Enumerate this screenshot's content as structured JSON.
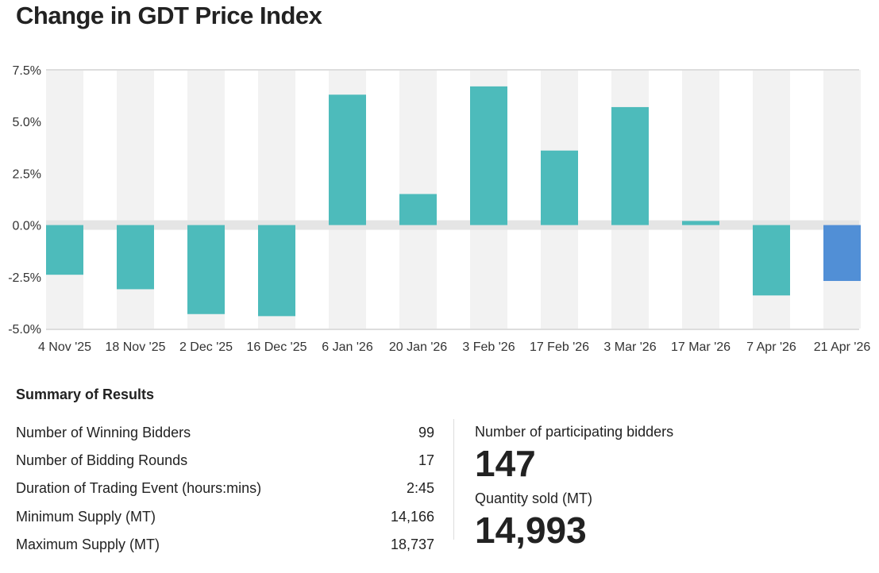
{
  "title": "Change in GDT Price Index",
  "chart_data": {
    "type": "bar",
    "categories": [
      "4 Nov '25",
      "18 Nov '25",
      "2 Dec '25",
      "16 Dec '25",
      "6 Jan '26",
      "20 Jan '26",
      "3 Feb '26",
      "17 Feb '26",
      "3 Mar '26",
      "17 Mar '26",
      "7 Apr '26",
      "21 Apr '26"
    ],
    "values": [
      -2.4,
      -3.1,
      -4.3,
      -4.4,
      6.3,
      1.5,
      6.7,
      3.6,
      5.7,
      0.2,
      -3.4,
      -2.7
    ],
    "ylim": [
      -5,
      7.5
    ],
    "yticks": [
      "7.5%",
      "5.0%",
      "2.5%",
      "0.0%",
      "-2.5%",
      "-5.0%"
    ],
    "ytick_values": [
      7.5,
      5,
      2.5,
      0,
      -2.5,
      -5
    ],
    "colors": {
      "bar": "#4dbbbb",
      "latest": "#518fd6",
      "band": "#f2f2f2"
    }
  },
  "summary": {
    "title": "Summary of Results",
    "rows": [
      {
        "label": "Number of Winning Bidders",
        "value": "99"
      },
      {
        "label": "Number of Bidding Rounds",
        "value": "17"
      },
      {
        "label": "Duration of Trading Event (hours:mins)",
        "value": "2:45"
      },
      {
        "label": "Minimum Supply (MT)",
        "value": "14,166"
      },
      {
        "label": "Maximum Supply (MT)",
        "value": "18,737"
      }
    ],
    "participating_label": "Number of participating bidders",
    "participating_value": "147",
    "quantity_label": "Quantity sold (MT)",
    "quantity_value": "14,993"
  }
}
